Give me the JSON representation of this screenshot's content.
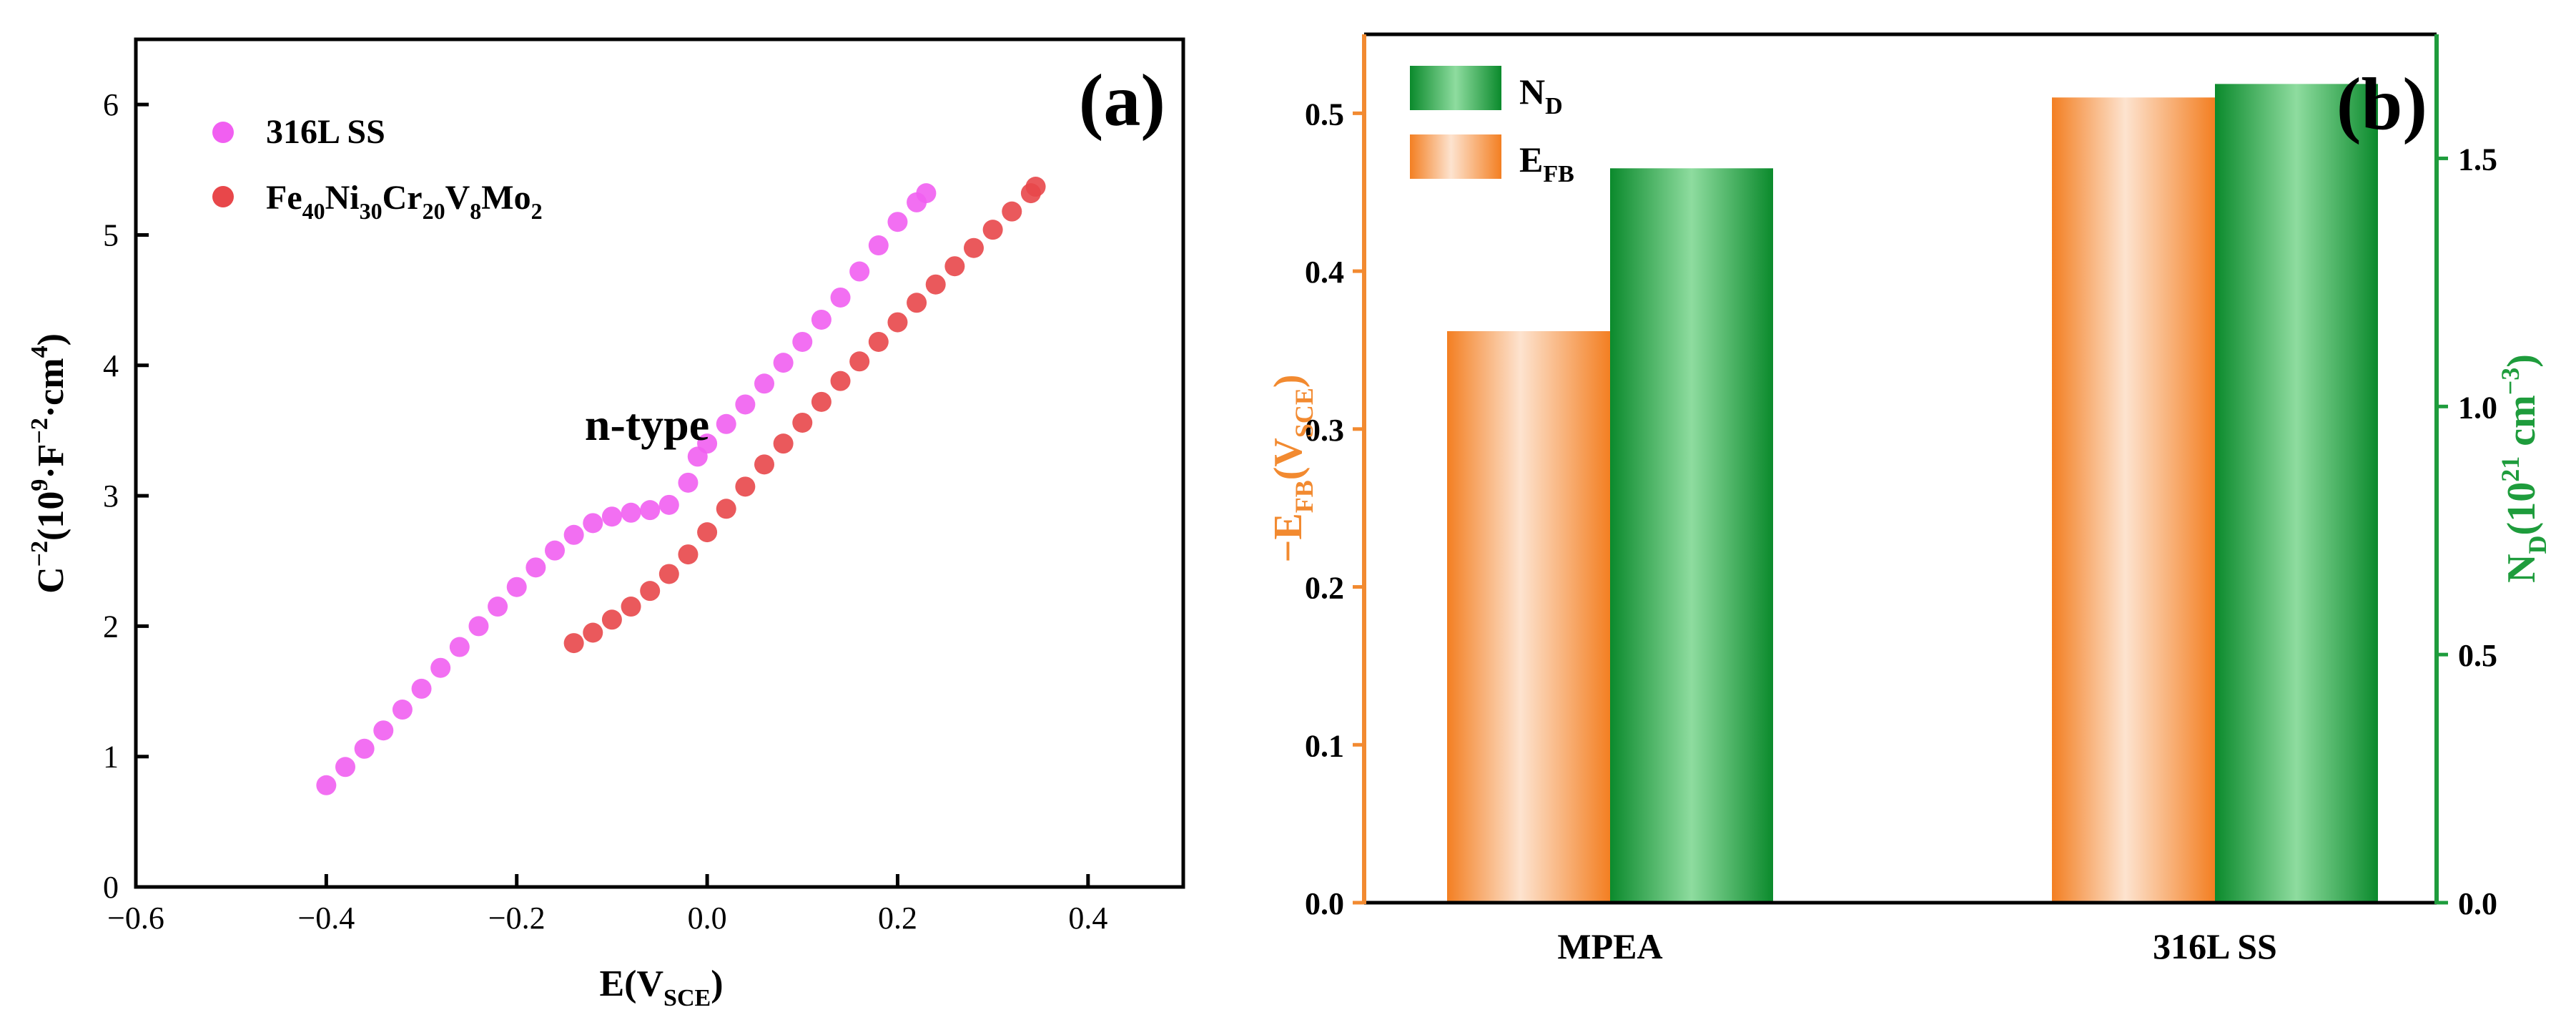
{
  "chart_data": [
    {
      "type": "scatter",
      "panel_label": "(a)",
      "xlabel": "E(V",
      "xlabel_sub": "SCE",
      "xlabel_end": ")",
      "ylabel": "C",
      "ylabel_sup": "−2",
      "ylabel_units": "(10",
      "ylabel_units_sup": "9",
      "ylabel_units_mid": "·F",
      "ylabel_units_sup2": "−2",
      "ylabel_units_end": "·cm",
      "ylabel_units_sup3": "4",
      "ylabel_close": ")",
      "xlim": [
        -0.6,
        0.5
      ],
      "ylim": [
        0,
        6.5
      ],
      "xticks": [
        -0.6,
        -0.4,
        -0.2,
        0.0,
        0.2,
        0.4
      ],
      "xtick_labels": [
        "−0.6",
        "−0.4",
        "−0.2",
        "0.0",
        "0.2",
        "0.4"
      ],
      "yticks": [
        0,
        1,
        2,
        3,
        4,
        5,
        6
      ],
      "ytick_labels": [
        "0",
        "1",
        "2",
        "3",
        "4",
        "5",
        "6"
      ],
      "annotation": "n-type",
      "legend_position": "top-left",
      "series": [
        {
          "name": "316L SS",
          "color": "#f15ff1",
          "points": [
            [
              -0.4,
              0.78
            ],
            [
              -0.38,
              0.92
            ],
            [
              -0.36,
              1.06
            ],
            [
              -0.34,
              1.2
            ],
            [
              -0.32,
              1.36
            ],
            [
              -0.3,
              1.52
            ],
            [
              -0.28,
              1.68
            ],
            [
              -0.26,
              1.84
            ],
            [
              -0.24,
              2.0
            ],
            [
              -0.22,
              2.15
            ],
            [
              -0.2,
              2.3
            ],
            [
              -0.18,
              2.45
            ],
            [
              -0.16,
              2.58
            ],
            [
              -0.14,
              2.7
            ],
            [
              -0.12,
              2.79
            ],
            [
              -0.1,
              2.84
            ],
            [
              -0.08,
              2.87
            ],
            [
              -0.06,
              2.89
            ],
            [
              -0.04,
              2.93
            ],
            [
              -0.02,
              3.1
            ],
            [
              -0.01,
              3.3
            ],
            [
              0.0,
              3.4
            ],
            [
              0.02,
              3.55
            ],
            [
              0.04,
              3.7
            ],
            [
              0.06,
              3.86
            ],
            [
              0.08,
              4.02
            ],
            [
              0.1,
              4.18
            ],
            [
              0.12,
              4.35
            ],
            [
              0.14,
              4.52
            ],
            [
              0.16,
              4.72
            ],
            [
              0.18,
              4.92
            ],
            [
              0.2,
              5.1
            ],
            [
              0.22,
              5.25
            ],
            [
              0.23,
              5.32
            ]
          ]
        },
        {
          "name": "Fe40Ni30Cr20V8Mo2",
          "name_parts": [
            [
              "Fe",
              ""
            ],
            [
              "40",
              "sub"
            ],
            [
              "Ni",
              ""
            ],
            [
              "30",
              "sub"
            ],
            [
              "Cr",
              ""
            ],
            [
              "20",
              "sub"
            ],
            [
              "V",
              ""
            ],
            [
              "8",
              "sub"
            ],
            [
              "Mo",
              ""
            ],
            [
              "2",
              "sub"
            ]
          ],
          "color": "#e8474a",
          "points": [
            [
              -0.14,
              1.87
            ],
            [
              -0.12,
              1.95
            ],
            [
              -0.1,
              2.05
            ],
            [
              -0.08,
              2.15
            ],
            [
              -0.06,
              2.27
            ],
            [
              -0.04,
              2.4
            ],
            [
              -0.02,
              2.55
            ],
            [
              0.0,
              2.72
            ],
            [
              0.02,
              2.9
            ],
            [
              0.04,
              3.07
            ],
            [
              0.06,
              3.24
            ],
            [
              0.08,
              3.4
            ],
            [
              0.1,
              3.56
            ],
            [
              0.12,
              3.72
            ],
            [
              0.14,
              3.88
            ],
            [
              0.16,
              4.03
            ],
            [
              0.18,
              4.18
            ],
            [
              0.2,
              4.33
            ],
            [
              0.22,
              4.48
            ],
            [
              0.24,
              4.62
            ],
            [
              0.26,
              4.76
            ],
            [
              0.28,
              4.9
            ],
            [
              0.3,
              5.04
            ],
            [
              0.32,
              5.18
            ],
            [
              0.34,
              5.32
            ],
            [
              0.345,
              5.37
            ]
          ]
        }
      ]
    },
    {
      "type": "bar",
      "panel_label": "(b)",
      "categories": [
        "MPEA",
        "316L SS"
      ],
      "left_axis": {
        "label_pre": "−E",
        "label_sub": "FB",
        "label_mid": "(V",
        "label_sub2": "SCE",
        "label_end": ")",
        "color": "#f28a30",
        "ylim": [
          0,
          0.55
        ],
        "ticks": [
          0.0,
          0.1,
          0.2,
          0.3,
          0.4,
          0.5
        ],
        "tick_labels": [
          "0.0",
          "0.1",
          "0.2",
          "0.3",
          "0.4",
          "0.5"
        ]
      },
      "right_axis": {
        "label_pre": "N",
        "label_sub": "D",
        "label_mid": "(10",
        "label_sup": "21",
        "label_end": " cm",
        "label_sup2": "−3",
        "label_close": ")",
        "color": "#1e9c3c",
        "ylim": [
          0,
          1.75
        ],
        "ticks": [
          0.0,
          0.5,
          1.0,
          1.5
        ],
        "tick_labels": [
          "0.0",
          "0.5",
          "1.0",
          "1.5"
        ]
      },
      "legend_position": "top-left",
      "series": [
        {
          "name": "N",
          "name_sub": "D",
          "axis": "right",
          "color": "#1e9c3c",
          "values": [
            1.48,
            1.65
          ]
        },
        {
          "name": "E",
          "name_sub": "FB",
          "axis": "left",
          "color": "#f28a30",
          "values": [
            0.362,
            0.51
          ]
        }
      ]
    }
  ]
}
